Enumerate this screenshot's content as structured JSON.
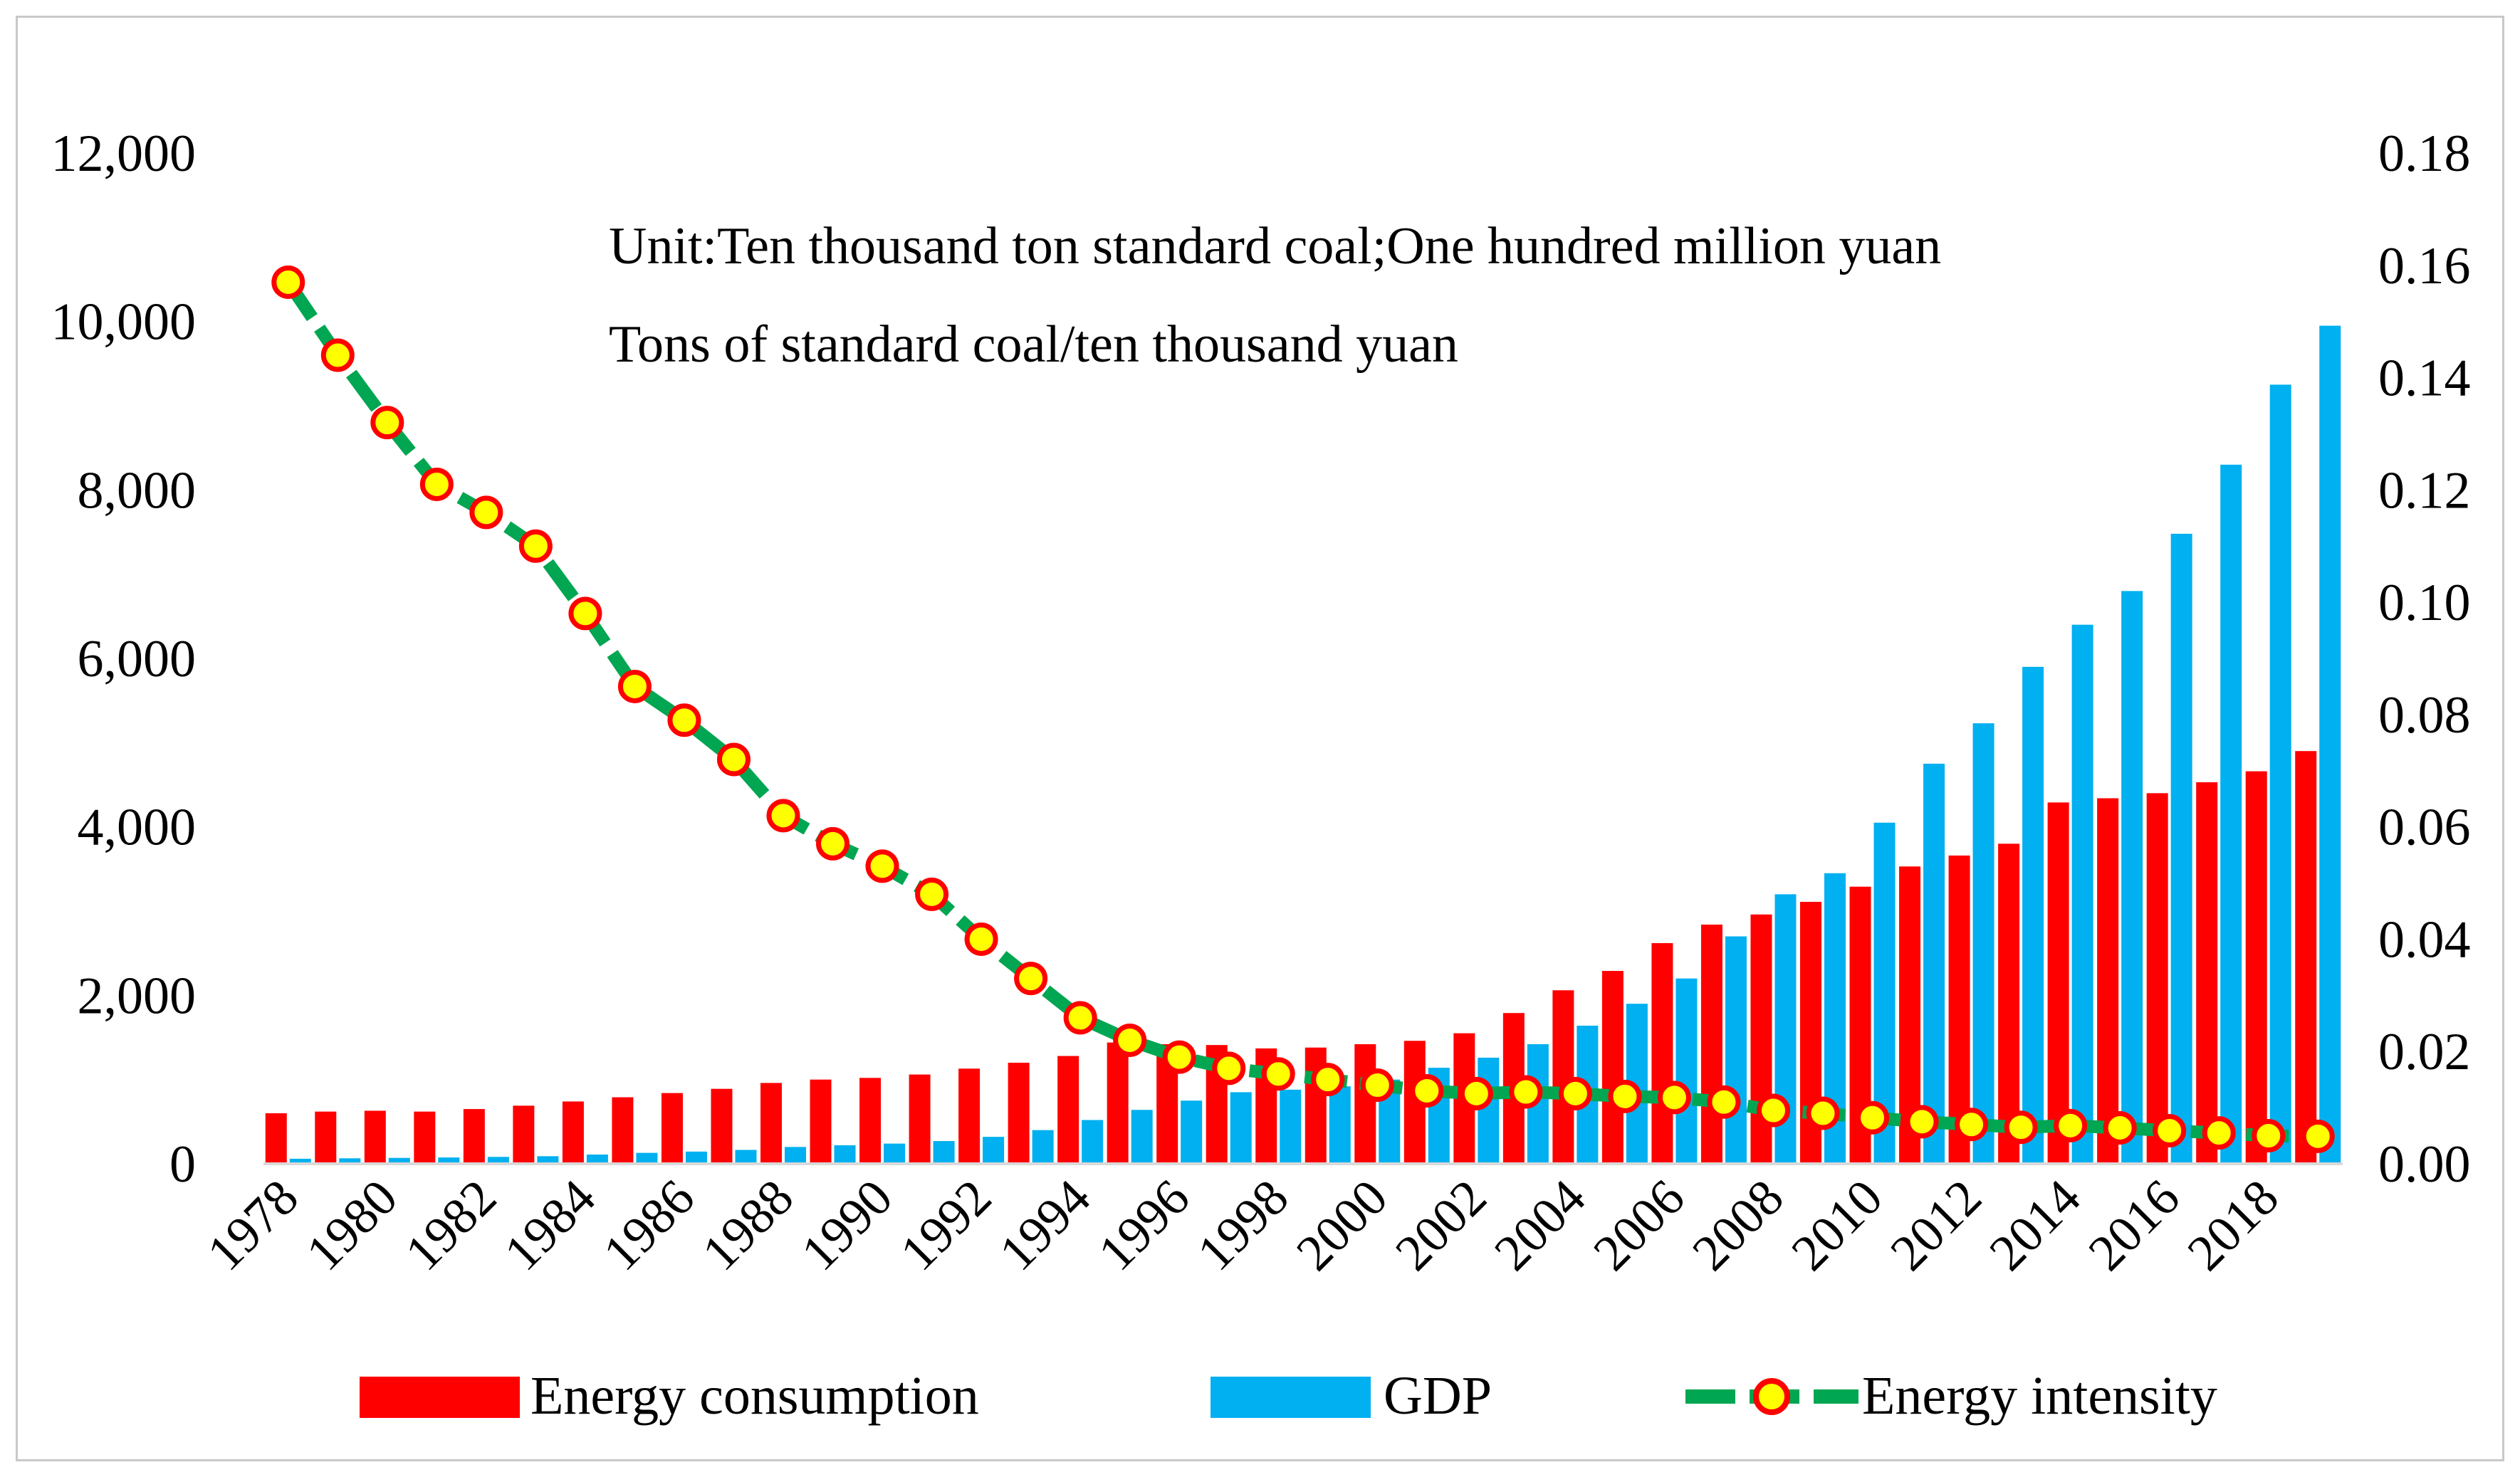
{
  "chart_data": {
    "type": "bar",
    "annotations": [
      "Unit:Ten thousand ton standard coal;One hundred million yuan",
      "Tons of standard coal/ten thousand yuan"
    ],
    "categories": [
      "1978",
      "1979",
      "1980",
      "1981",
      "1982",
      "1983",
      "1984",
      "1985",
      "1986",
      "1987",
      "1988",
      "1989",
      "1990",
      "1991",
      "1992",
      "1993",
      "1994",
      "1995",
      "1996",
      "1997",
      "1998",
      "1999",
      "2000",
      "2001",
      "2002",
      "2003",
      "2004",
      "2005",
      "2006",
      "2007",
      "2008",
      "2009",
      "2010",
      "2011",
      "2012",
      "2013",
      "2014",
      "2015",
      "2016",
      "2017",
      "2018",
      "2019"
    ],
    "x_tick_labels": [
      "1978",
      "1980",
      "1982",
      "1984",
      "1986",
      "1988",
      "1990",
      "1992",
      "1994",
      "1996",
      "1998",
      "2000",
      "2002",
      "2004",
      "2006",
      "2008",
      "2010",
      "2012",
      "2014",
      "2016",
      "2018"
    ],
    "y_left": {
      "ticks": [
        "0",
        "2,000",
        "4,000",
        "6,000",
        "8,000",
        "10,000",
        "12,000"
      ],
      "range": [
        0,
        12000
      ]
    },
    "y_right": {
      "ticks": [
        "0.00",
        "0.02",
        "0.04",
        "0.06",
        "0.08",
        "0.10",
        "0.12",
        "0.14",
        "0.16",
        "0.18"
      ],
      "range": [
        0,
        0.18
      ]
    },
    "series": [
      {
        "name": "Energy consumption",
        "axis": "left",
        "kind": "bar",
        "color": "#ff0000",
        "values": [
          600,
          620,
          630,
          620,
          650,
          690,
          740,
          790,
          840,
          890,
          960,
          1000,
          1020,
          1060,
          1130,
          1200,
          1280,
          1440,
          1420,
          1410,
          1370,
          1380,
          1420,
          1460,
          1550,
          1790,
          2060,
          2290,
          2620,
          2840,
          2960,
          3110,
          3290,
          3530,
          3660,
          3800,
          4290,
          4340,
          4400,
          4530,
          4660,
          4900
        ]
      },
      {
        "name": "GDP",
        "axis": "left",
        "kind": "bar",
        "color": "#00b0f0",
        "values": [
          60,
          65,
          70,
          75,
          82,
          90,
          110,
          130,
          145,
          165,
          200,
          220,
          240,
          270,
          320,
          400,
          520,
          640,
          750,
          850,
          880,
          920,
          1000,
          1140,
          1260,
          1420,
          1640,
          1900,
          2200,
          2700,
          3200,
          3450,
          4050,
          4750,
          5230,
          5900,
          6400,
          6800,
          7480,
          8300,
          9250,
          9950
        ]
      },
      {
        "name": "Energy intensity",
        "axis": "right",
        "kind": "line",
        "color": "#00a651",
        "marker_fill": "#ffff00",
        "marker_edge": "#ff0000",
        "values": [
          0.157,
          0.144,
          0.132,
          0.121,
          0.116,
          0.11,
          0.098,
          0.085,
          0.079,
          0.072,
          0.062,
          0.057,
          0.053,
          0.048,
          0.04,
          0.033,
          0.026,
          0.022,
          0.019,
          0.017,
          0.016,
          0.015,
          0.014,
          0.013,
          0.0125,
          0.0128,
          0.0125,
          0.012,
          0.0118,
          0.011,
          0.0095,
          0.009,
          0.0082,
          0.0075,
          0.007,
          0.0065,
          0.0068,
          0.0064,
          0.0059,
          0.0055,
          0.005,
          0.0049
        ]
      }
    ],
    "legend_position": "bottom"
  }
}
